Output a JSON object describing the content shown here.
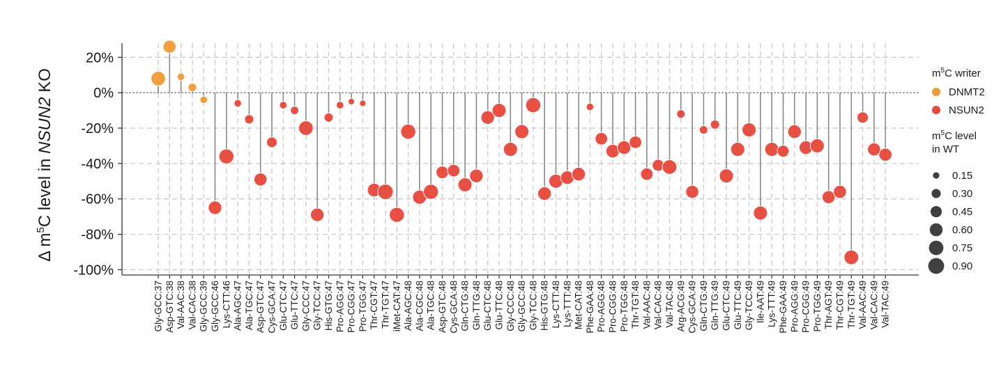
{
  "chart_data": {
    "type": "scatter",
    "subtype": "lollipop",
    "ylabel": {
      "prefix": "Δ m",
      "sup": "5",
      "mid": "C level in ",
      "italic": "NSUN2",
      "suffix": " KO"
    },
    "ylim": [
      -103,
      28
    ],
    "yticks": [
      20,
      0,
      -20,
      -40,
      -60,
      -80,
      -100
    ],
    "ytick_labels": [
      "20%",
      "0%",
      "-20%",
      "-40%",
      "-60%",
      "-80%",
      "-100%"
    ],
    "grid": true,
    "legend_position": "right",
    "colors": {
      "DNMT2": "#f29a35",
      "NSUN2": "#e8473a",
      "stem": "#8a8a8a",
      "grid": "#c8c8c8",
      "axis": "#333333"
    },
    "legend_writer": {
      "title_prefix": "m",
      "title_sup": "5",
      "title_suffix": "C writer",
      "items": [
        "DNMT2",
        "NSUN2"
      ]
    },
    "legend_size": {
      "title_prefix": "m",
      "title_sup": "5",
      "title_suffix": "C level",
      "title_line2": "in WT",
      "values": [
        0.15,
        0.3,
        0.45,
        0.6,
        0.75,
        0.9
      ],
      "labels": [
        "0.15",
        "0.30",
        "0.45",
        "0.60",
        "0.75",
        "0.90"
      ]
    },
    "categories": [
      "Gly-GCC:37",
      "Asp-GTC:38",
      "Val-AAC:38",
      "Val-CAC:38",
      "Gly-GCC:39",
      "Gly-GCC:46",
      "Lys-CTT:46",
      "Ala-AGC:47",
      "Ala-TGC:47",
      "Asp-GTC:47",
      "Cys-GCA:47",
      "Glu-CTC:47",
      "Glu-TTC:47",
      "Gly-CCC:47",
      "Gly-TCC:47",
      "His-GTG:47",
      "Pro-AGG:47",
      "Pro-CGG:47",
      "Pro-TGG:47",
      "Thr-CGT:47",
      "Thr-TGT:47",
      "iMet-CAT:47",
      "Ala-AGC:48",
      "Ala-CGC:48",
      "Ala-TGC:48",
      "Asp-GTC:48",
      "Cys-GCA:48",
      "Gln-CTG:48",
      "Gln-TTG:48",
      "Glu-CTC:48",
      "Glu-TTC:48",
      "Gly-CCC:48",
      "Gly-GCC:48",
      "Gly-TCC:48",
      "His-GTG:48",
      "Lys-CTT:48",
      "Lys-TTT:48",
      "Met-CAT:48",
      "Phe-GAA:48",
      "Pro-AGG:48",
      "Pro-CGG:48",
      "Pro-TGG:48",
      "Thr-TGT:48",
      "Val-AAC:48",
      "Val-CAC:48",
      "Val-TAC:48",
      "Arg-ACG:49",
      "Cys-GCA:49",
      "Gln-CTG:49",
      "Gln-TTG:49",
      "Glu-CTC:49",
      "Glu-TTC:49",
      "Gly-TCC:49",
      "Ile-AAT:49",
      "Lys-TTT:49",
      "Phe-GAA:49",
      "Pro-AGG:49",
      "Pro-CGG:49",
      "Pro-TGG:49",
      "Thr-AGT:49",
      "Thr-CGT:49",
      "Thr-TGT:49",
      "Val-AAC:49",
      "Val-CAC:49",
      "Val-TAC:49"
    ],
    "series": [
      {
        "name": "delta_m5C",
        "values": [
          8,
          26,
          9,
          3,
          -4,
          -65,
          -36,
          -6,
          -15,
          -49,
          -28,
          -7,
          -10,
          -20,
          -69,
          -14,
          -7,
          -5,
          -6,
          -55,
          -56,
          -69,
          -22,
          -59,
          -56,
          -45,
          -44,
          -52,
          -47,
          -14,
          -10,
          -32,
          -22,
          -7,
          -57,
          -50,
          -48,
          -46,
          -8,
          -26,
          -33,
          -31,
          -28,
          -46,
          -41,
          -42,
          -12,
          -56,
          -21,
          -18,
          -47,
          -32,
          -21,
          -68,
          -32,
          -33,
          -22,
          -31,
          -30,
          -59,
          -56,
          -93,
          -14,
          -32,
          -35
        ]
      },
      {
        "name": "writer",
        "values": [
          "DNMT2",
          "DNMT2",
          "DNMT2",
          "DNMT2",
          "DNMT2",
          "NSUN2",
          "NSUN2",
          "NSUN2",
          "NSUN2",
          "NSUN2",
          "NSUN2",
          "NSUN2",
          "NSUN2",
          "NSUN2",
          "NSUN2",
          "NSUN2",
          "NSUN2",
          "NSUN2",
          "NSUN2",
          "NSUN2",
          "NSUN2",
          "NSUN2",
          "NSUN2",
          "NSUN2",
          "NSUN2",
          "NSUN2",
          "NSUN2",
          "NSUN2",
          "NSUN2",
          "NSUN2",
          "NSUN2",
          "NSUN2",
          "NSUN2",
          "NSUN2",
          "NSUN2",
          "NSUN2",
          "NSUN2",
          "NSUN2",
          "NSUN2",
          "NSUN2",
          "NSUN2",
          "NSUN2",
          "NSUN2",
          "NSUN2",
          "NSUN2",
          "NSUN2",
          "NSUN2",
          "NSUN2",
          "NSUN2",
          "NSUN2",
          "NSUN2",
          "NSUN2",
          "NSUN2",
          "NSUN2",
          "NSUN2",
          "NSUN2",
          "NSUN2",
          "NSUN2",
          "NSUN2",
          "NSUN2",
          "NSUN2",
          "NSUN2",
          "NSUN2",
          "NSUN2",
          "NSUN2"
        ]
      },
      {
        "name": "m5C_level_WT",
        "values": [
          0.75,
          0.6,
          0.2,
          0.25,
          0.2,
          0.65,
          0.8,
          0.2,
          0.3,
          0.6,
          0.4,
          0.2,
          0.25,
          0.75,
          0.65,
          0.3,
          0.2,
          0.15,
          0.15,
          0.65,
          0.85,
          0.8,
          0.8,
          0.7,
          0.8,
          0.55,
          0.55,
          0.7,
          0.65,
          0.65,
          0.7,
          0.7,
          0.7,
          0.8,
          0.65,
          0.7,
          0.65,
          0.65,
          0.2,
          0.55,
          0.65,
          0.65,
          0.55,
          0.55,
          0.5,
          0.75,
          0.25,
          0.6,
          0.25,
          0.3,
          0.7,
          0.7,
          0.7,
          0.7,
          0.7,
          0.5,
          0.65,
          0.65,
          0.7,
          0.6,
          0.6,
          0.75,
          0.45,
          0.6,
          0.6
        ]
      }
    ]
  }
}
